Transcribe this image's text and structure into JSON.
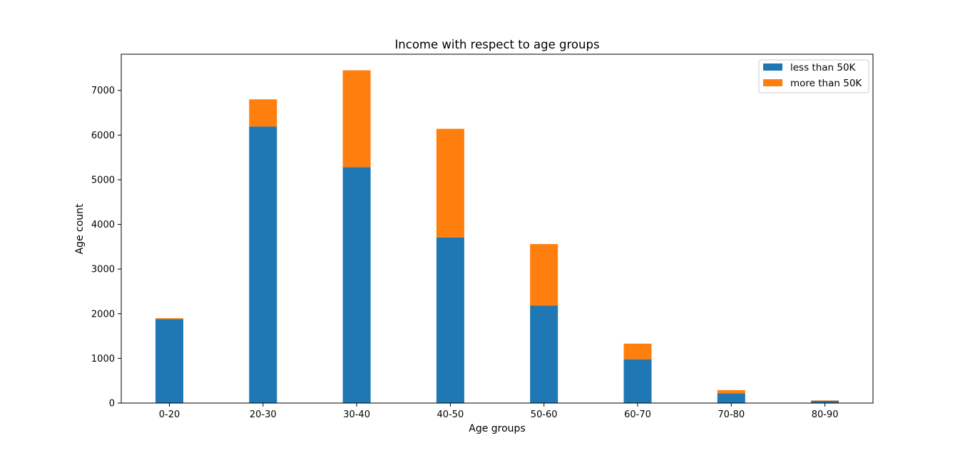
{
  "chart_data": {
    "type": "bar",
    "stacked": true,
    "title": "Income with respect to age groups",
    "xlabel": "Age groups",
    "ylabel": "Age count",
    "categories": [
      "0-20",
      "20-30",
      "30-40",
      "40-50",
      "50-60",
      "60-70",
      "70-80",
      "80-90"
    ],
    "series": [
      {
        "name": "less than 50K",
        "color": "#1f77b4",
        "values": [
          1880,
          6190,
          5280,
          3710,
          2180,
          980,
          220,
          50
        ]
      },
      {
        "name": "more than 50K",
        "color": "#ff7f0e",
        "values": [
          20,
          610,
          2170,
          2430,
          1380,
          350,
          70,
          10
        ]
      }
    ],
    "ylim": [
      0,
      7810
    ],
    "yticks": [
      0,
      1000,
      2000,
      3000,
      4000,
      5000,
      6000,
      7000
    ],
    "grid": false,
    "legend": "top-right"
  }
}
